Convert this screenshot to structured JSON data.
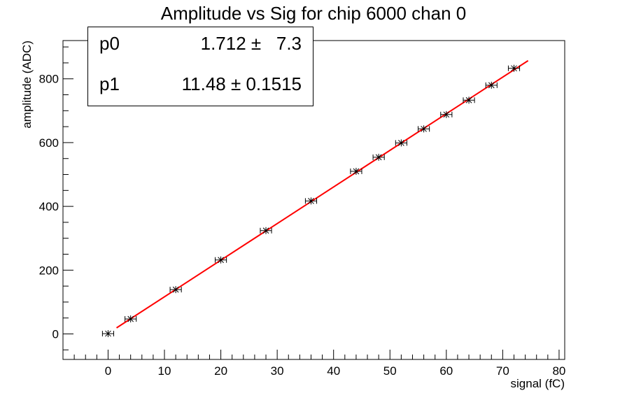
{
  "chart_data": {
    "type": "scatter",
    "title": "Amplitude vs Sig for chip 6000 chan 0",
    "xlabel": "signal (fC)",
    "ylabel": "amplitude (ADC)",
    "xlim": [
      -8,
      81
    ],
    "ylim": [
      -80,
      920
    ],
    "x_ticks": [
      0,
      10,
      20,
      30,
      40,
      50,
      60,
      70,
      80
    ],
    "y_ticks": [
      0,
      200,
      400,
      600,
      800
    ],
    "grid": false,
    "points": [
      {
        "x": 0,
        "y": 1,
        "xerr": 1
      },
      {
        "x": 4,
        "y": 47,
        "xerr": 1
      },
      {
        "x": 12,
        "y": 139,
        "xerr": 1
      },
      {
        "x": 20,
        "y": 232,
        "xerr": 1
      },
      {
        "x": 28,
        "y": 324,
        "xerr": 1
      },
      {
        "x": 36,
        "y": 417,
        "xerr": 1
      },
      {
        "x": 44,
        "y": 510,
        "xerr": 1
      },
      {
        "x": 48,
        "y": 554,
        "xerr": 1
      },
      {
        "x": 52,
        "y": 599,
        "xerr": 1
      },
      {
        "x": 56,
        "y": 643,
        "xerr": 1
      },
      {
        "x": 60,
        "y": 688,
        "xerr": 1
      },
      {
        "x": 64,
        "y": 733,
        "xerr": 1
      },
      {
        "x": 68,
        "y": 780,
        "xerr": 1
      },
      {
        "x": 72,
        "y": 833,
        "xerr": 1
      }
    ],
    "fit": {
      "x_range": [
        1.5,
        74.5
      ],
      "p0": 1.712,
      "p1": 11.48,
      "color": "#ff0000"
    },
    "stats_box": {
      "rows": [
        {
          "name": "p0",
          "value": "1.712 ±   7.3"
        },
        {
          "name": "p1",
          "value": "11.48 ± 0.1515"
        }
      ]
    }
  }
}
